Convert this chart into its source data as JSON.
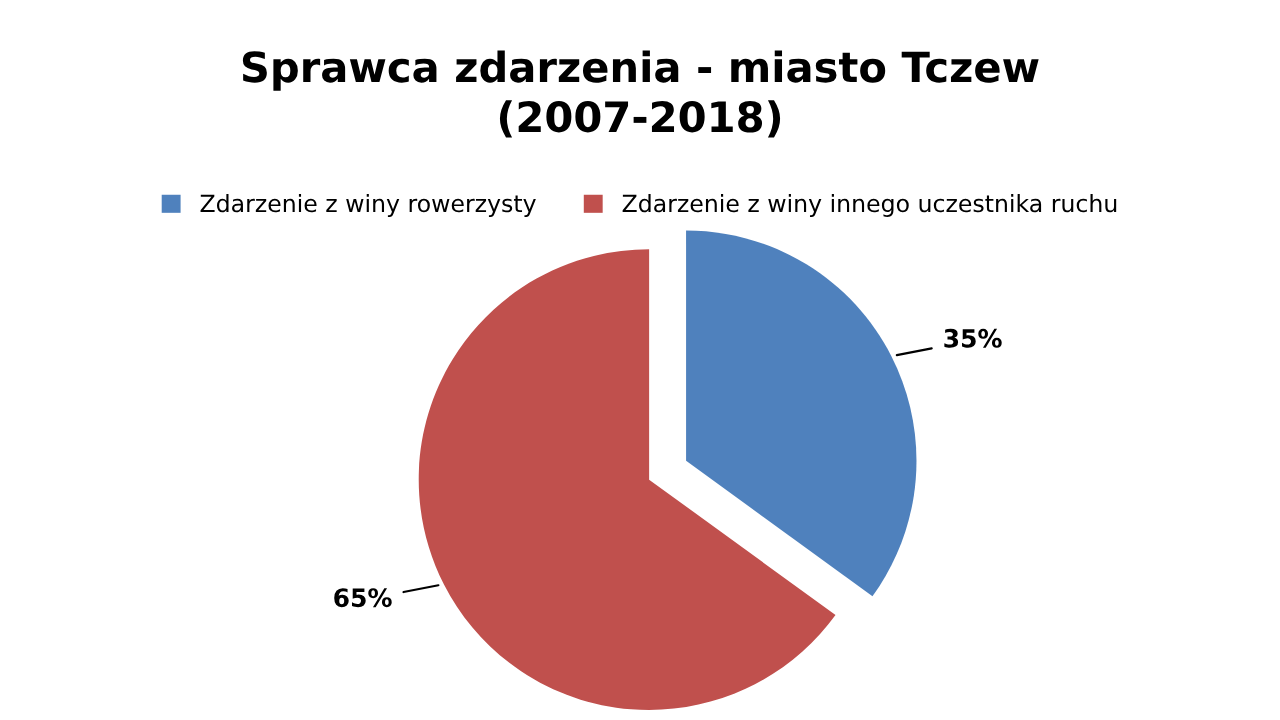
{
  "chart_data": {
    "type": "pie",
    "title": "Sprawca zdarzenia - miasto Tczew\n(2007-2018)",
    "categories": [
      "Zdarzenie z winy rowerzysty",
      "Zdarzenie z winy innego uczestnika ruchu"
    ],
    "values": [
      35,
      65
    ],
    "colors": [
      "#4f81bd",
      "#c0504d"
    ],
    "value_labels": [
      "35%",
      "65%"
    ],
    "legend": "top"
  }
}
